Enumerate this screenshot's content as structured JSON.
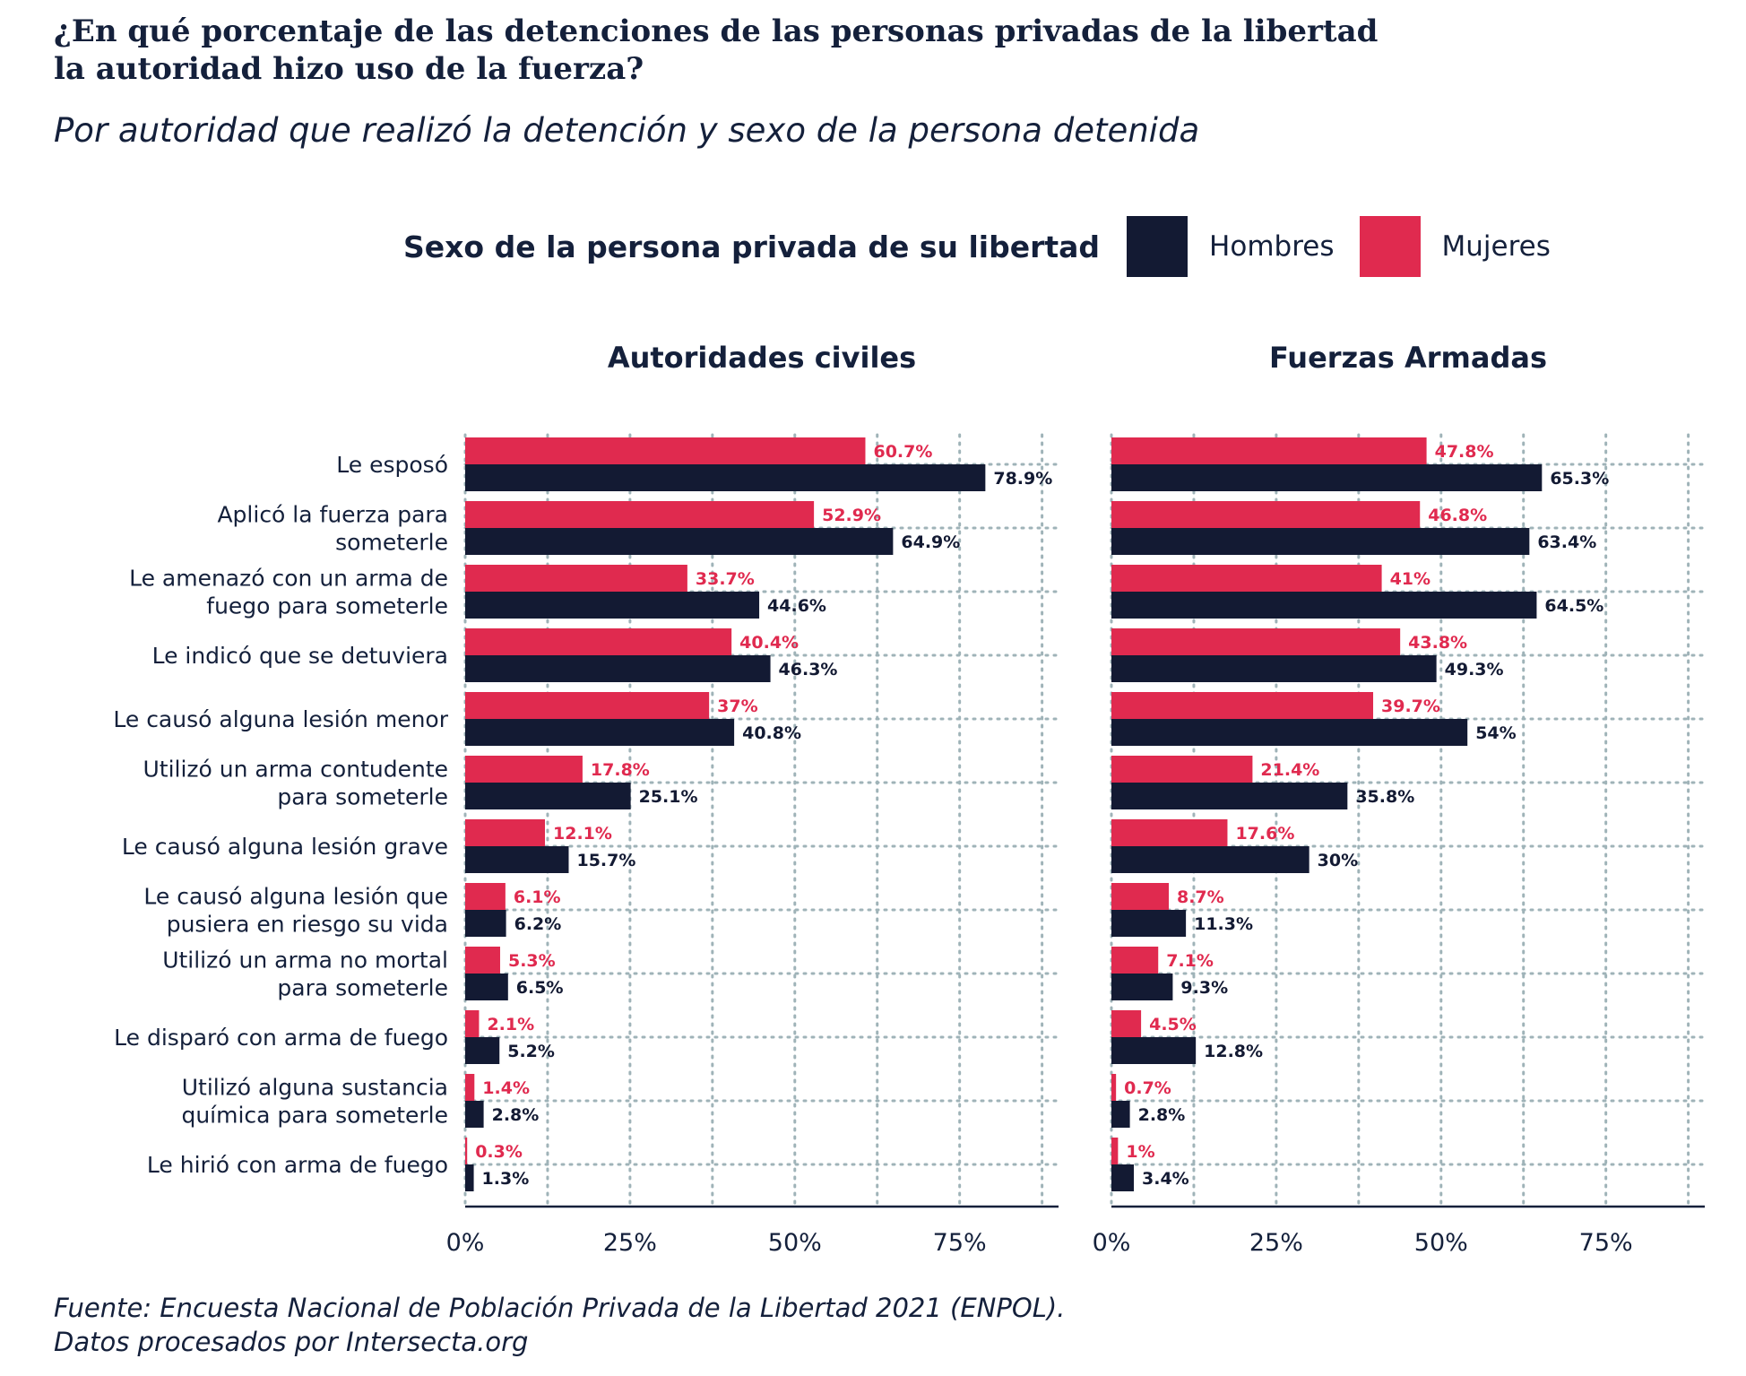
{
  "title_line1": "¿En qué porcentaje de las detenciones de las personas privadas de la libertad",
  "title_line2": "la autoridad hizo uso de la fuerza?",
  "subtitle": "Por autoridad que realizó la detención y sexo de la persona detenida",
  "source_line1": "Fuente: Encuesta Nacional de Población Privada de la Libertad 2021 (ENPOL).",
  "source_line2": "Datos procesados por Intersecta.org",
  "colors": {
    "hombres": "#131a33",
    "mujeres": "#e02a4f",
    "text": "#14203b",
    "grid": "#9fb3b8"
  },
  "chart_data": {
    "type": "bar",
    "orientation": "horizontal",
    "legend_title": "Sexo de la persona privada de su libertad",
    "legend_position": "top",
    "grid": true,
    "xlim": [
      0,
      90
    ],
    "xticks": [
      "0%",
      "25%",
      "50%",
      "75%"
    ],
    "categories": [
      [
        "Le esposó"
      ],
      [
        "Aplicó la fuerza para",
        "someterle"
      ],
      [
        "Le amenazó con un arma de",
        "fuego para someterle"
      ],
      [
        "Le indicó que se detuviera"
      ],
      [
        "Le causó alguna lesión menor"
      ],
      [
        "Utilizó un arma contudente",
        "para someterle"
      ],
      [
        "Le causó alguna lesión grave"
      ],
      [
        "Le causó alguna lesión que",
        "pusiera en riesgo su vida"
      ],
      [
        "Utilizó un arma no mortal",
        "para someterle"
      ],
      [
        "Le disparó con arma de fuego"
      ],
      [
        "Utilizó alguna sustancia",
        "química para someterle"
      ],
      [
        "Le hirió con arma de fuego"
      ]
    ],
    "panels": [
      {
        "title": "Autoridades civiles",
        "series": [
          {
            "name": "Mujeres",
            "values": [
              60.7,
              52.9,
              33.7,
              40.4,
              37,
              17.8,
              12.1,
              6.1,
              5.3,
              2.1,
              1.4,
              0.3
            ],
            "labels": [
              "60.7%",
              "52.9%",
              "33.7%",
              "40.4%",
              "37%",
              "17.8%",
              "12.1%",
              "6.1%",
              "5.3%",
              "2.1%",
              "1.4%",
              "0.3%"
            ]
          },
          {
            "name": "Hombres",
            "values": [
              78.9,
              64.9,
              44.6,
              46.3,
              40.8,
              25.1,
              15.7,
              6.2,
              6.5,
              5.2,
              2.8,
              1.3
            ],
            "labels": [
              "78.9%",
              "64.9%",
              "44.6%",
              "46.3%",
              "40.8%",
              "25.1%",
              "15.7%",
              "6.2%",
              "6.5%",
              "5.2%",
              "2.8%",
              "1.3%"
            ]
          }
        ]
      },
      {
        "title": "Fuerzas Armadas",
        "series": [
          {
            "name": "Mujeres",
            "values": [
              47.8,
              46.8,
              41,
              43.8,
              39.7,
              21.4,
              17.6,
              8.7,
              7.1,
              4.5,
              0.7,
              1
            ],
            "labels": [
              "47.8%",
              "46.8%",
              "41%",
              "43.8%",
              "39.7%",
              "21.4%",
              "17.6%",
              "8.7%",
              "7.1%",
              "4.5%",
              "0.7%",
              "1%"
            ]
          },
          {
            "name": "Hombres",
            "values": [
              65.3,
              63.4,
              64.5,
              49.3,
              54,
              35.8,
              30,
              11.3,
              9.3,
              12.8,
              2.8,
              3.4
            ],
            "labels": [
              "65.3%",
              "63.4%",
              "64.5%",
              "49.3%",
              "54%",
              "35.8%",
              "30%",
              "11.3%",
              "9.3%",
              "12.8%",
              "2.8%",
              "3.4%"
            ]
          }
        ]
      }
    ]
  }
}
